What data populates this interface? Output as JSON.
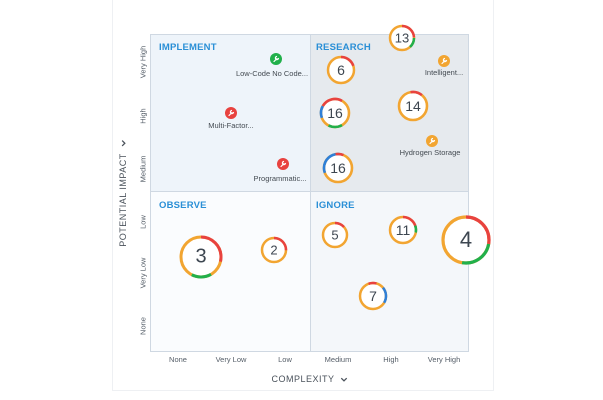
{
  "axes": {
    "y_title": "POTENTIAL IMPACT",
    "x_title": "COMPLEXITY",
    "y_ticks": [
      "Very High",
      "High",
      "Medium",
      "Low",
      "Very Low",
      "None"
    ],
    "x_ticks": [
      "None",
      "Very Low",
      "Low",
      "Medium",
      "High",
      "Very High"
    ]
  },
  "quadrants": {
    "implement": "IMPLEMENT",
    "research": "RESEARCH",
    "observe": "OBSERVE",
    "ignore": "IGNORE"
  },
  "items": [
    {
      "label": "Low-Code No Code...",
      "color": "#21b04b",
      "icon": "wrench-icon"
    },
    {
      "label": "Multi-Factor...",
      "color": "#e8423f",
      "icon": "wrench-icon"
    },
    {
      "label": "Programmatic...",
      "color": "#e8423f",
      "icon": "wrench-icon"
    },
    {
      "label": "Intelligent...",
      "color": "#f2a531",
      "icon": "wrench-icon"
    },
    {
      "label": "Hydrogen Storage",
      "color": "#f2a531",
      "icon": "wrench-icon"
    }
  ],
  "clusters": [
    {
      "count": "13"
    },
    {
      "count": "6"
    },
    {
      "count": "16"
    },
    {
      "count": "14"
    },
    {
      "count": "16"
    },
    {
      "count": "3"
    },
    {
      "count": "2"
    },
    {
      "count": "5"
    },
    {
      "count": "11"
    },
    {
      "count": "4"
    },
    {
      "count": "7"
    }
  ],
  "colors": {
    "accent": "#2a8fd6",
    "red": "#e8423f",
    "orange": "#f2a531",
    "green": "#21b04b",
    "blue": "#2f80d8"
  }
}
